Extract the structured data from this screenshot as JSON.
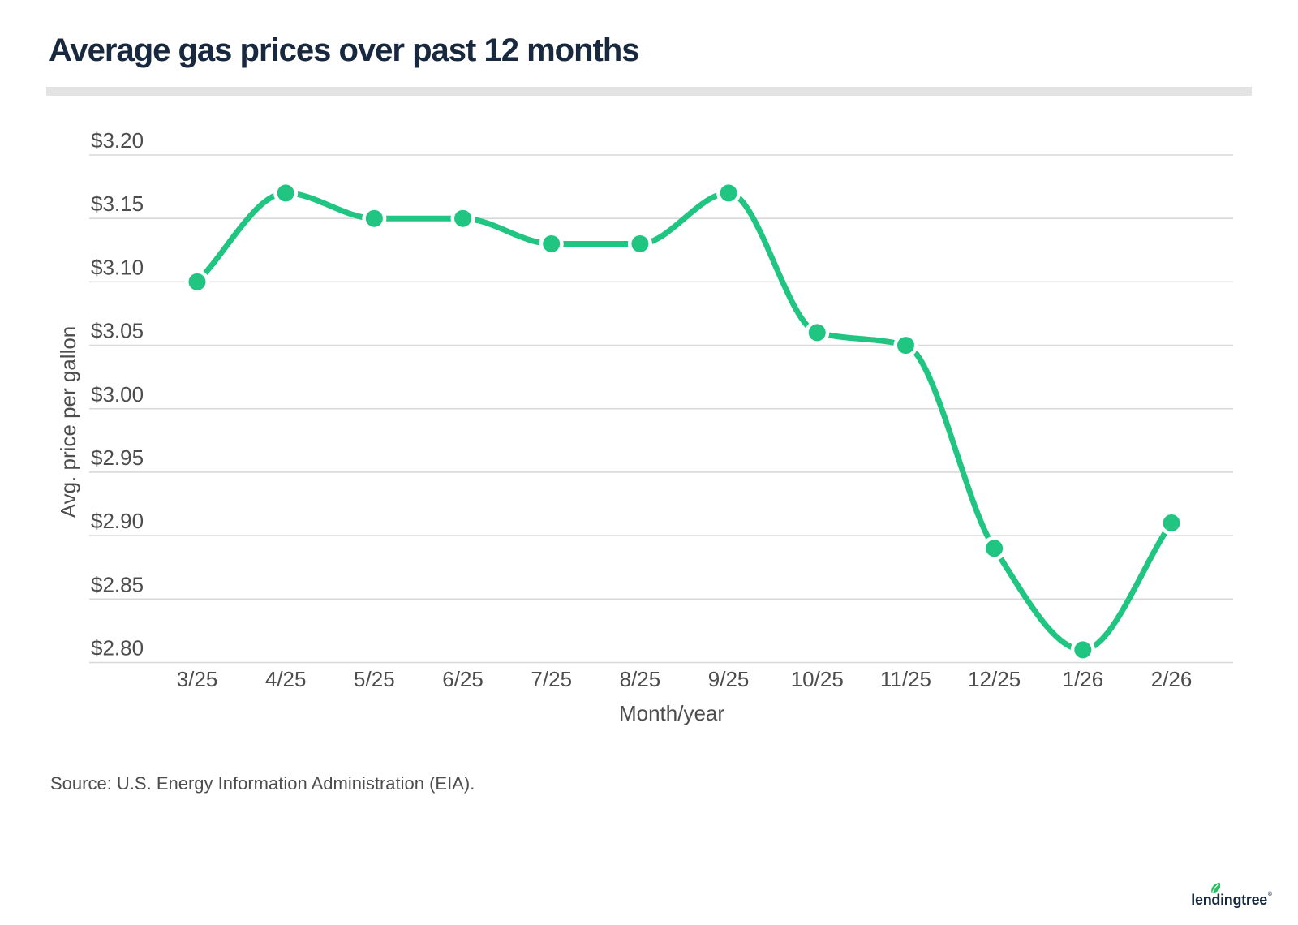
{
  "page": {
    "title": "Average gas prices over past 12 months",
    "source": "Source: U.S. Energy Information Administration (EIA).",
    "logo_text": "lendingtree",
    "logo_reg": "®"
  },
  "chart_data": {
    "type": "line",
    "title": "Average gas prices over past 12 months",
    "categories": [
      "3/25",
      "4/25",
      "5/25",
      "6/25",
      "7/25",
      "8/25",
      "9/25",
      "10/25",
      "11/25",
      "12/25",
      "1/26",
      "2/26"
    ],
    "values": [
      3.1,
      3.17,
      3.15,
      3.15,
      3.13,
      3.13,
      3.17,
      3.06,
      3.05,
      2.89,
      2.81,
      2.91
    ],
    "series_name": "Average gas price",
    "xlabel": "Month/year",
    "ylabel": "Avg. price per gallon",
    "ylim": [
      2.8,
      3.2
    ],
    "ytick_step": 0.05,
    "ytick_labels": [
      "$3.20",
      "$3.15",
      "$3.10",
      "$3.05",
      "$3.00",
      "$2.95",
      "$2.90",
      "$2.85",
      "$2.80"
    ],
    "grid": "horizontal-only",
    "legend": "none",
    "marker": "circle",
    "curve": "smooth-monotone"
  },
  "colors": {
    "line_green": "#20c581",
    "leaf_green": "#2cbe65",
    "navy_text": "#17283f",
    "axis_text": "#4d4d4d",
    "gridline": "#d8d8d8",
    "divider": "#e3e3e3",
    "background": "#ffffff"
  }
}
